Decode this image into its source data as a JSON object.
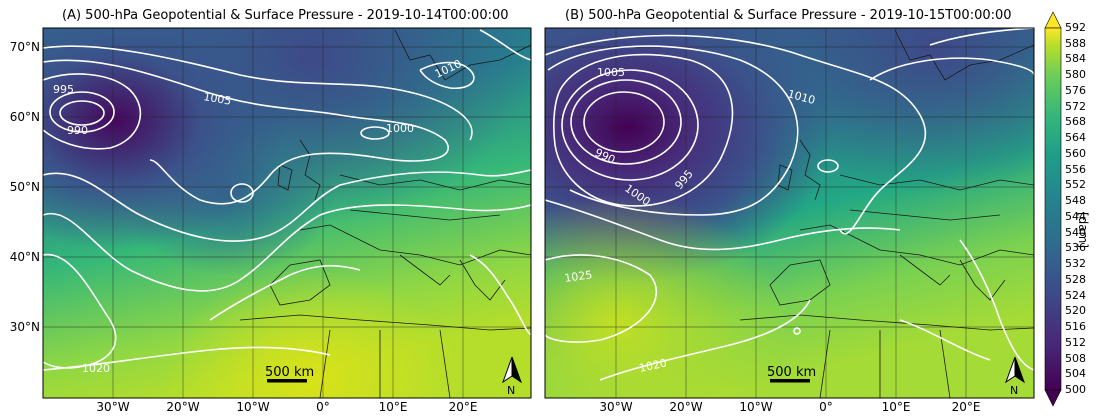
{
  "panels": [
    {
      "title": "(A) 500-hPa Geopotential & Surface Pressure - 2019-10-14T00:00:00",
      "lat_labels": [
        "70°N",
        "60°N",
        "50°N",
        "40°N",
        "30°N"
      ],
      "lon_labels": [
        "30°W",
        "20°W",
        "10°W",
        "0°",
        "10°E",
        "20°E"
      ],
      "contour_labels": [
        "995",
        "990",
        "1005",
        "1010",
        "1000",
        "1020"
      ],
      "scale_bar": "500 km",
      "north_arrow": "N"
    },
    {
      "title": "(B) 500-hPa Geopotential & Surface Pressure - 2019-10-15T00:00:00",
      "lat_labels": [],
      "lon_labels": [
        "30°W",
        "20°W",
        "10°W",
        "0°",
        "10°E",
        "20°E"
      ],
      "contour_labels": [
        "1005",
        "1010",
        "990",
        "995",
        "1000",
        "1025",
        "1020"
      ],
      "scale_bar": "500 km",
      "north_arrow": "N"
    }
  ],
  "colorbar": {
    "unit": "[dam]",
    "ticks": [
      "592",
      "588",
      "584",
      "580",
      "576",
      "572",
      "568",
      "564",
      "560",
      "556",
      "552",
      "548",
      "544",
      "540",
      "536",
      "532",
      "528",
      "524",
      "520",
      "516",
      "512",
      "508",
      "504",
      "500"
    ],
    "colors": {
      "low": "#440154",
      "mid": "#2a788e",
      "high": "#f0e833"
    }
  }
}
